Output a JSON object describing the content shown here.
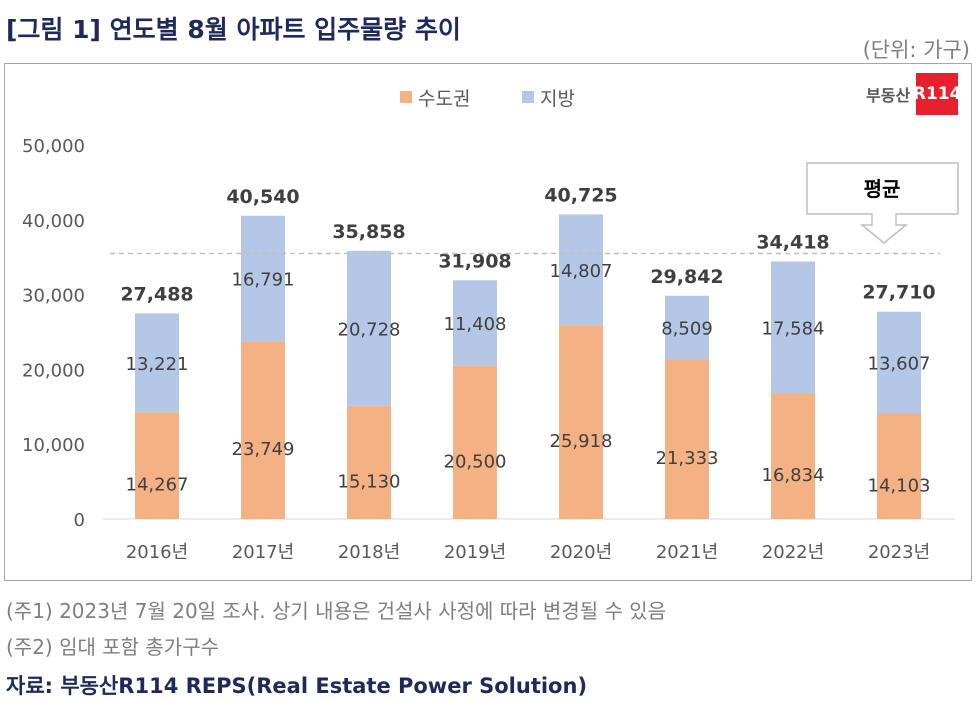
{
  "title": "[그림 1] 연도별 8월 아파트 입주물량 추이",
  "unit": "(단위: 가구)",
  "logo": {
    "text": "부동산",
    "box": "R114"
  },
  "notes": [
    "(주1) 2023년 7월 20일 조사. 상기 내용은 건설사 사정에 따라 변경될 수 있음",
    "(주2) 임대 포함 총가구수"
  ],
  "source": "자료: 부동산R114 REPS(Real Estate Power Solution)",
  "chart_data": {
    "type": "bar",
    "stacked": true,
    "categories": [
      "2016년",
      "2017년",
      "2018년",
      "2019년",
      "2020년",
      "2021년",
      "2022년",
      "2023년"
    ],
    "series": [
      {
        "name": "수도권",
        "color": "#F4B183",
        "values": [
          14267,
          23749,
          15130,
          20500,
          25918,
          21333,
          16834,
          14103
        ]
      },
      {
        "name": "지방",
        "color": "#B4C7E7",
        "values": [
          13221,
          16791,
          20728,
          11408,
          14807,
          8509,
          17584,
          13607
        ]
      }
    ],
    "totals": [
      27488,
      40540,
      35858,
      31908,
      40725,
      29842,
      34418,
      27710
    ],
    "ylim": [
      0,
      50000
    ],
    "yticks": [
      "0",
      "10,000",
      "20,000",
      "30,000",
      "40,000",
      "50,000"
    ],
    "legend": "top",
    "grid": false,
    "average_line": {
      "label": "평균",
      "value": 35500
    }
  }
}
